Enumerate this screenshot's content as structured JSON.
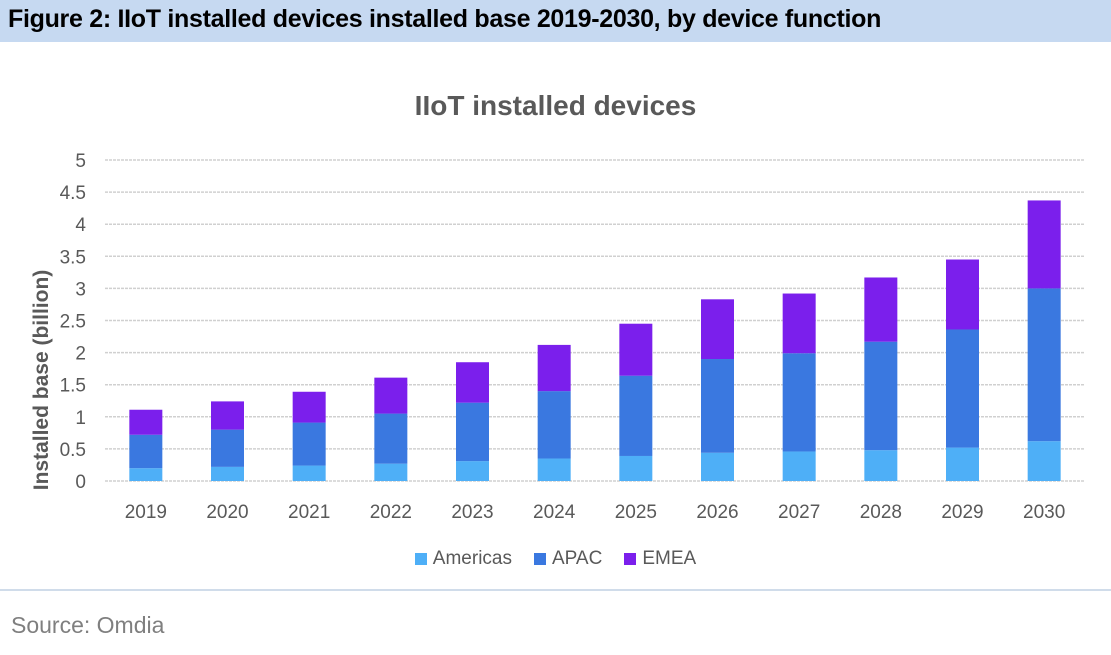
{
  "figure": {
    "title": "Figure 2: IIoT installed devices installed base 2019-2030, by device function",
    "source": "Source: Omdia"
  },
  "chart_data": {
    "type": "bar",
    "stacked": true,
    "title": "IIoT installed devices",
    "xlabel": "",
    "ylabel": "Installed base (billion)",
    "ylim": [
      0,
      5
    ],
    "yticks": [
      "0",
      "0.5",
      "1",
      "1.5",
      "2",
      "2.5",
      "3",
      "3.5",
      "4",
      "4.5",
      "5"
    ],
    "ytick_values": [
      0,
      0.5,
      1,
      1.5,
      2,
      2.5,
      3,
      3.5,
      4,
      4.5,
      5
    ],
    "grid": true,
    "legend_position": "bottom",
    "categories": [
      "2019",
      "2020",
      "2021",
      "2022",
      "2023",
      "2024",
      "2025",
      "2026",
      "2027",
      "2028",
      "2029",
      "2030"
    ],
    "series": [
      {
        "name": "Americas",
        "color": "#4eaff7",
        "values": [
          0.2,
          0.22,
          0.24,
          0.27,
          0.31,
          0.35,
          0.39,
          0.44,
          0.46,
          0.48,
          0.52,
          0.62
        ]
      },
      {
        "name": "APAC",
        "color": "#3a78e0",
        "values": [
          0.52,
          0.58,
          0.67,
          0.78,
          0.91,
          1.05,
          1.25,
          1.46,
          1.53,
          1.69,
          1.84,
          2.38
        ]
      },
      {
        "name": "EMEA",
        "color": "#7b1fec",
        "values": [
          0.39,
          0.44,
          0.48,
          0.56,
          0.63,
          0.72,
          0.81,
          0.93,
          0.93,
          1.0,
          1.09,
          1.37
        ]
      }
    ]
  }
}
